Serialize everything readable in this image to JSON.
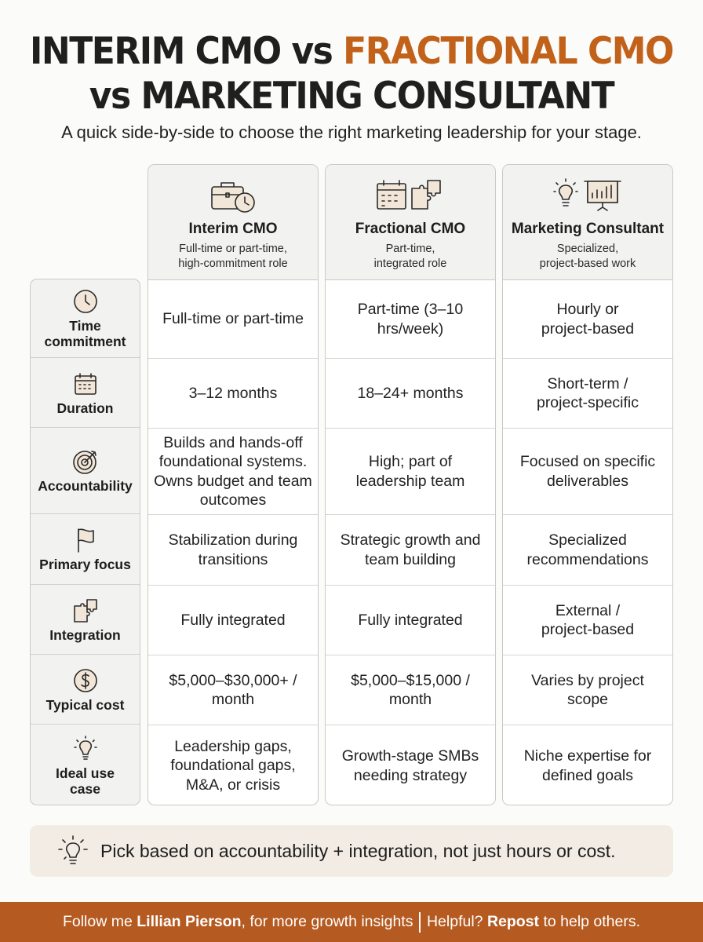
{
  "title": {
    "line1_part1": "INTERIM CMO vs ",
    "line1_accent": "FRACTIONAL CMO",
    "line2": "vs MARKETING CONSULTANT",
    "accent_color": "#c2611a"
  },
  "subtitle": "A quick side-by-side to choose the right marketing leadership for your stage.",
  "columns": [
    {
      "name": "Interim CMO",
      "desc_line1": "Full-time or part-time,",
      "desc_line2": "high-commitment role",
      "icons": [
        "briefcase-icon",
        "clock-icon"
      ]
    },
    {
      "name": "Fractional CMO",
      "desc_line1": "Part-time,",
      "desc_line2": "integrated role",
      "icons": [
        "calendar-icon",
        "puzzle-icon"
      ]
    },
    {
      "name": "Marketing Consultant",
      "desc_line1": "Specialized,",
      "desc_line2": "project-based work",
      "icons": [
        "lightbulb-icon",
        "presentation-chart-icon"
      ]
    }
  ],
  "rows": [
    {
      "label": "Time commitment",
      "icon": "clock-icon",
      "values": [
        "Full-time or part-time",
        "Part-time (3–10 hrs/week)",
        "Hourly or project-based"
      ]
    },
    {
      "label": "Duration",
      "icon": "calendar-icon",
      "values": [
        "3–12 months",
        "18–24+ months",
        "Short-term / project-specific"
      ]
    },
    {
      "label": "Accountability",
      "icon": "target-icon",
      "values": [
        "Builds and hands-off foundational systems. Owns budget and team outcomes",
        "High; part of leadership team",
        "Focused on specific deliverables"
      ]
    },
    {
      "label": "Primary focus",
      "icon": "flag-icon",
      "values": [
        "Stabilization during transitions",
        "Strategic growth and team building",
        "Specialized recommendations"
      ]
    },
    {
      "label": "Integration",
      "icon": "puzzle-icon",
      "values": [
        "Fully integrated",
        "Fully integrated",
        "External / project-based"
      ]
    },
    {
      "label": "Typical cost",
      "icon": "dollar-icon",
      "values": [
        "$5,000–$30,000+ / month",
        "$5,000–$15,000 / month",
        "Varies by project scope"
      ]
    },
    {
      "label": "Ideal use case",
      "icon": "lightbulb-icon",
      "values": [
        "Leadership gaps, foundational gaps, M&A, or crisis",
        "Growth-stage SMBs needing strategy",
        "Niche expertise for defined goals"
      ]
    }
  ],
  "tip": {
    "text": "Pick based on accountability + integration, not just hours or cost.",
    "icon": "lightbulb-icon"
  },
  "footer": {
    "part1": "Follow me ",
    "name": "Lillian Pierson",
    "part2": ", for more growth insights",
    "part3": "Helpful? ",
    "repost": "Repost",
    "part4": " to help others."
  },
  "colors": {
    "footer_bg": "#b55a20",
    "header_bg": "#f2f2f0",
    "tip_bg": "#f2ece4"
  }
}
